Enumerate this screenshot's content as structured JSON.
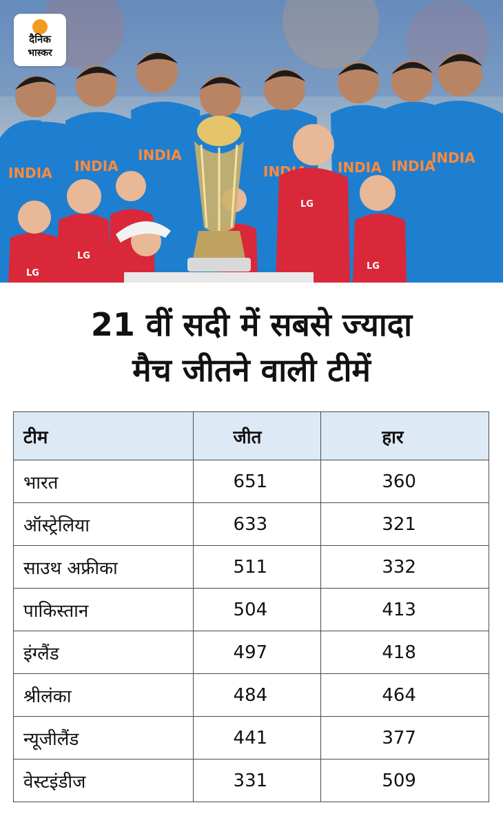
{
  "brand": {
    "line1": "दैनिक",
    "line2": "भास्कर",
    "accent": "#f39a1f"
  },
  "hero": {
    "jersey_text": "INDIA",
    "kid_jersey_text": "LG"
  },
  "title": {
    "line1": "21 वीं सदी में सबसे ज्यादा",
    "line2": "मैच जीतने वाली टीमें"
  },
  "chart_data": {
    "type": "table",
    "header_color": "#ddeaf5",
    "columns": [
      "टीम",
      "जीत",
      "हार"
    ],
    "rows": [
      {
        "team": "भारत",
        "wins": 651,
        "losses": 360
      },
      {
        "team": "ऑस्ट्रेलिया",
        "wins": 633,
        "losses": 321
      },
      {
        "team": "साउथ अफ्रीका",
        "wins": 511,
        "losses": 332
      },
      {
        "team": "पाकिस्तान",
        "wins": 504,
        "losses": 413
      },
      {
        "team": "इंग्लैंड",
        "wins": 497,
        "losses": 418
      },
      {
        "team": "श्रीलंका",
        "wins": 484,
        "losses": 464
      },
      {
        "team": "न्यूजीलैंड",
        "wins": 441,
        "losses": 377
      },
      {
        "team": "वेस्टइंडीज",
        "wins": 331,
        "losses": 509
      }
    ]
  }
}
